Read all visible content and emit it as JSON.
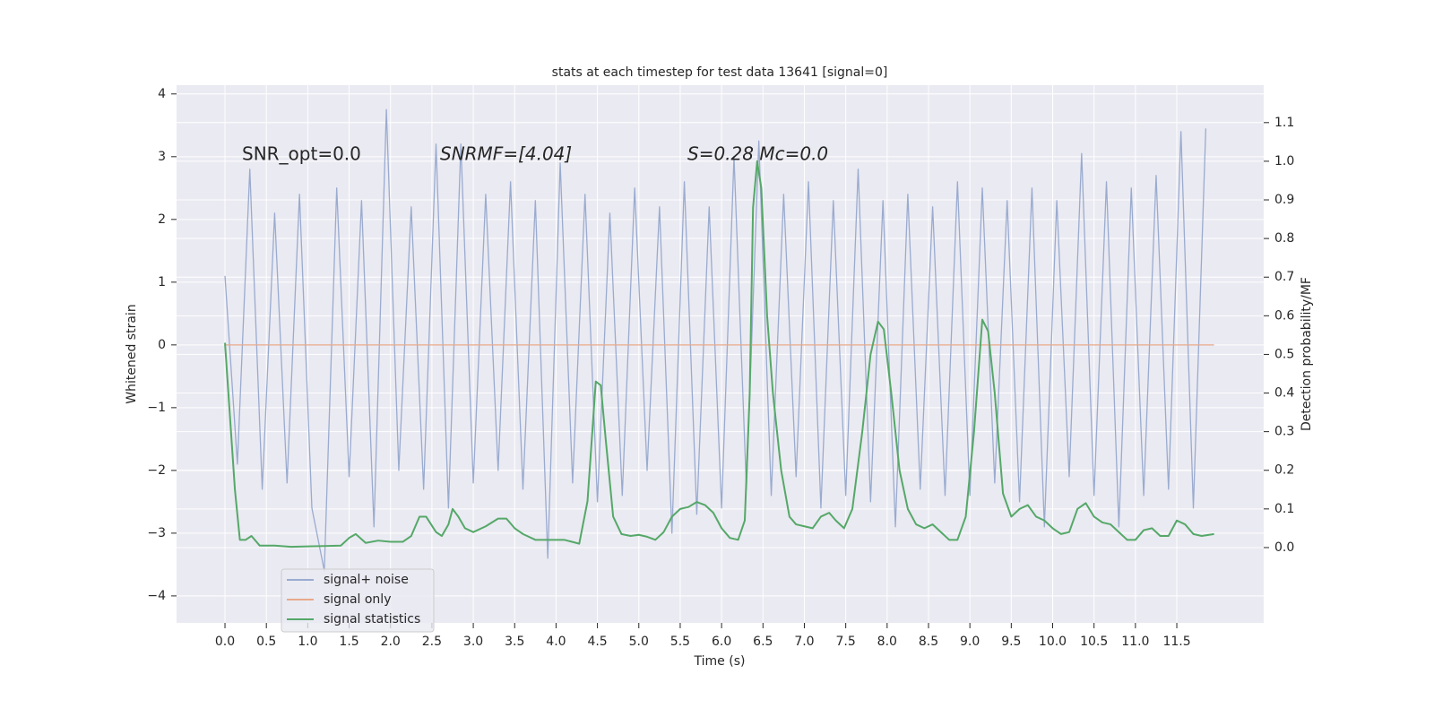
{
  "chart_data": {
    "type": "line",
    "title": "stats at each timestep for test data 13641 [signal=0]",
    "xlabel": "Time (s)",
    "ylabel": "Whitened strain",
    "y2label": "Detection probability/MF",
    "annotations": [
      "SNR_opt=0.0",
      "SNRMF=[4.04]",
      "S=0.28  Mc=0.0"
    ],
    "xlim": [
      -0.585,
      12.55
    ],
    "ylim": [
      -4.43,
      4.14
    ],
    "y2lim": [
      -0.195,
      1.197
    ],
    "xticks": [
      {
        "value": 0,
        "label": "0.0"
      },
      {
        "value": 0.5,
        "label": "0.5"
      },
      {
        "value": 1,
        "label": "1.0"
      },
      {
        "value": 1.5,
        "label": "1.5"
      },
      {
        "value": 2,
        "label": "2.0"
      },
      {
        "value": 2.5,
        "label": "2.5"
      },
      {
        "value": 3,
        "label": "3.0"
      },
      {
        "value": 3.5,
        "label": "3.5"
      },
      {
        "value": 4,
        "label": "4.0"
      },
      {
        "value": 4.5,
        "label": "4.5"
      },
      {
        "value": 5,
        "label": "5.0"
      },
      {
        "value": 5.5,
        "label": "5.5"
      },
      {
        "value": 6,
        "label": "6.0"
      },
      {
        "value": 6.5,
        "label": "6.5"
      },
      {
        "value": 7,
        "label": "7.0"
      },
      {
        "value": 7.5,
        "label": "7.5"
      },
      {
        "value": 8,
        "label": "8.0"
      },
      {
        "value": 8.5,
        "label": "8.5"
      },
      {
        "value": 9,
        "label": "9.0"
      },
      {
        "value": 9.5,
        "label": "9.5"
      },
      {
        "value": 10,
        "label": "10.0"
      },
      {
        "value": 10.5,
        "label": "10.5"
      },
      {
        "value": 11,
        "label": "11.0"
      },
      {
        "value": 11.5,
        "label": "11.5"
      }
    ],
    "yticks": [
      {
        "value": -4,
        "label": "−4"
      },
      {
        "value": -3,
        "label": "−3"
      },
      {
        "value": -2,
        "label": "−2"
      },
      {
        "value": -1,
        "label": "−1"
      },
      0,
      1,
      2,
      3,
      4
    ],
    "y2ticks": [
      {
        "value": 0,
        "label": "0.0"
      },
      {
        "value": 0.1,
        "label": "0.1"
      },
      {
        "value": 0.2,
        "label": "0.2"
      },
      {
        "value": 0.3,
        "label": "0.3"
      },
      {
        "value": 0.4,
        "label": "0.4"
      },
      {
        "value": 0.5,
        "label": "0.5"
      },
      {
        "value": 0.6,
        "label": "0.6"
      },
      {
        "value": 0.7,
        "label": "0.7"
      },
      {
        "value": 0.8,
        "label": "0.8"
      },
      {
        "value": 0.9,
        "label": "0.9"
      },
      {
        "value": 1,
        "label": "1.0"
      },
      {
        "value": 1.1,
        "label": "1.1"
      }
    ],
    "grid": true,
    "legend_loc": "lower left",
    "series": [
      {
        "name": "signal+ noise",
        "color": "#9aabcf",
        "x": [
          0.0,
          0.15,
          0.3,
          0.45,
          0.6,
          0.75,
          0.9,
          1.05,
          1.2,
          1.35,
          1.5,
          1.65,
          1.8,
          1.95,
          2.1,
          2.25,
          2.4,
          2.55,
          2.7,
          2.85,
          3.0,
          3.15,
          3.3,
          3.45,
          3.6,
          3.75,
          3.9,
          4.05,
          4.2,
          4.35,
          4.5,
          4.65,
          4.8,
          4.95,
          5.1,
          5.25,
          5.4,
          5.55,
          5.7,
          5.85,
          6.0,
          6.15,
          6.3,
          6.45,
          6.6,
          6.75,
          6.9,
          7.05,
          7.2,
          7.35,
          7.5,
          7.65,
          7.8,
          7.95,
          8.1,
          8.25,
          8.4,
          8.55,
          8.7,
          8.85,
          9.0,
          9.15,
          9.3,
          9.45,
          9.6,
          9.75,
          9.9,
          10.05,
          10.2,
          10.35,
          10.5,
          10.65,
          10.8,
          10.95,
          11.1,
          11.25,
          11.4,
          11.55,
          11.7,
          11.85
        ],
        "values": [
          1.1,
          -1.9,
          2.8,
          -2.3,
          2.1,
          -2.2,
          2.4,
          -2.6,
          -3.6,
          2.5,
          -2.1,
          2.3,
          -2.9,
          3.75,
          -2.0,
          2.2,
          -2.3,
          3.2,
          -2.6,
          3.2,
          -2.2,
          2.4,
          -2.0,
          2.6,
          -2.3,
          2.3,
          -3.4,
          2.9,
          -2.2,
          2.4,
          -2.5,
          2.1,
          -2.4,
          2.5,
          -2.0,
          2.2,
          -3.0,
          2.6,
          -2.7,
          2.2,
          -2.6,
          3.0,
          -2.3,
          3.25,
          -2.4,
          2.4,
          -2.1,
          2.6,
          -2.6,
          2.3,
          -2.4,
          2.8,
          -2.5,
          2.3,
          -2.9,
          2.4,
          -2.3,
          2.2,
          -2.4,
          2.6,
          -2.4,
          2.5,
          -2.2,
          2.3,
          -2.5,
          2.5,
          -2.9,
          2.3,
          -2.1,
          3.05,
          -2.4,
          2.6,
          -2.9,
          2.5,
          -2.4,
          2.7,
          -2.3,
          3.4,
          -2.6,
          3.45
        ]
      },
      {
        "name": "signal only",
        "color": "#e8a98a",
        "x": [
          0.0,
          11.95
        ],
        "values": [
          0,
          0
        ]
      },
      {
        "name": "signal statistics",
        "color": "#55a868",
        "axis": "y2",
        "x": [
          0.0,
          0.12,
          0.18,
          0.25,
          0.32,
          0.42,
          0.6,
          0.8,
          1.0,
          1.2,
          1.4,
          1.5,
          1.58,
          1.7,
          1.85,
          2.0,
          2.15,
          2.25,
          2.35,
          2.43,
          2.55,
          2.62,
          2.7,
          2.75,
          2.82,
          2.9,
          3.0,
          3.15,
          3.3,
          3.4,
          3.5,
          3.6,
          3.75,
          3.9,
          4.1,
          4.28,
          4.38,
          4.48,
          4.54,
          4.6,
          4.69,
          4.79,
          4.9,
          5.0,
          5.1,
          5.2,
          5.3,
          5.4,
          5.5,
          5.6,
          5.7,
          5.8,
          5.9,
          6.0,
          6.1,
          6.2,
          6.28,
          6.34,
          6.38,
          6.43,
          6.48,
          6.55,
          6.62,
          6.72,
          6.82,
          6.9,
          7.0,
          7.1,
          7.2,
          7.3,
          7.38,
          7.48,
          7.58,
          7.7,
          7.8,
          7.89,
          7.96,
          8.05,
          8.15,
          8.25,
          8.35,
          8.45,
          8.55,
          8.65,
          8.75,
          8.85,
          8.95,
          9.05,
          9.15,
          9.22,
          9.3,
          9.4,
          9.5,
          9.6,
          9.7,
          9.8,
          9.9,
          10.0,
          10.1,
          10.2,
          10.3,
          10.4,
          10.5,
          10.6,
          10.7,
          10.8,
          10.9,
          11.0,
          11.1,
          11.2,
          11.3,
          11.4,
          11.5,
          11.6,
          11.7,
          11.8,
          11.95
        ],
        "values": [
          0.53,
          0.15,
          0.02,
          0.02,
          0.03,
          0.005,
          0.005,
          0.002,
          0.003,
          0.004,
          0.005,
          0.025,
          0.035,
          0.012,
          0.018,
          0.015,
          0.015,
          0.03,
          0.08,
          0.08,
          0.04,
          0.03,
          0.06,
          0.1,
          0.08,
          0.05,
          0.04,
          0.055,
          0.075,
          0.075,
          0.05,
          0.035,
          0.02,
          0.02,
          0.02,
          0.01,
          0.12,
          0.43,
          0.42,
          0.28,
          0.08,
          0.035,
          0.03,
          0.033,
          0.028,
          0.02,
          0.04,
          0.08,
          0.1,
          0.105,
          0.118,
          0.11,
          0.09,
          0.05,
          0.025,
          0.02,
          0.07,
          0.4,
          0.88,
          1.0,
          0.93,
          0.6,
          0.4,
          0.2,
          0.08,
          0.06,
          0.055,
          0.05,
          0.08,
          0.09,
          0.07,
          0.05,
          0.1,
          0.3,
          0.5,
          0.585,
          0.565,
          0.4,
          0.2,
          0.1,
          0.06,
          0.05,
          0.06,
          0.04,
          0.02,
          0.02,
          0.08,
          0.3,
          0.59,
          0.56,
          0.4,
          0.14,
          0.08,
          0.1,
          0.11,
          0.08,
          0.07,
          0.05,
          0.035,
          0.04,
          0.1,
          0.115,
          0.08,
          0.065,
          0.06,
          0.04,
          0.02,
          0.02,
          0.045,
          0.05,
          0.03,
          0.03,
          0.07,
          0.06,
          0.035,
          0.03,
          0.035
        ]
      }
    ]
  }
}
